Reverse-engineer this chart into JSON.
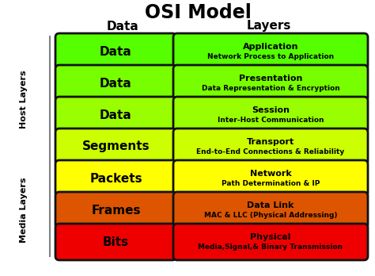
{
  "title": "OSI Model",
  "col_header_left": "Data",
  "col_header_right": "Layers",
  "layers": [
    {
      "data_label": "Data",
      "layer_name": "Application",
      "layer_desc": "Network Process to Application",
      "bg_color": "#55ff00"
    },
    {
      "data_label": "Data",
      "layer_name": "Presentation",
      "layer_desc": "Data Representation & Encryption",
      "bg_color": "#77ff00"
    },
    {
      "data_label": "Data",
      "layer_name": "Session",
      "layer_desc": "Inter-Host Communication",
      "bg_color": "#99ff00"
    },
    {
      "data_label": "Segments",
      "layer_name": "Transport",
      "layer_desc": "End-to-End Connections & Reliability",
      "bg_color": "#ccff00"
    },
    {
      "data_label": "Packets",
      "layer_name": "Network",
      "layer_desc": "Path Determination & IP",
      "bg_color": "#ffff00"
    },
    {
      "data_label": "Frames",
      "layer_name": "Data Link",
      "layer_desc": "MAC & LLC (Physical Addressing)",
      "bg_color": "#dd5500"
    },
    {
      "data_label": "Bits",
      "layer_name": "Physical",
      "layer_desc": "Media,Signal,& Binary Transmission",
      "bg_color": "#ee0000"
    }
  ],
  "host_label": "Host Layers",
  "media_label": "Media Layers",
  "host_layers_count": 4,
  "media_layers_count": 3,
  "background_color": "#ffffff",
  "title_fontsize": 17,
  "header_fontsize": 11,
  "data_label_fontsize": 11,
  "layer_name_fontsize": 8,
  "layer_desc_fontsize": 6.5,
  "side_label_fontsize": 8
}
